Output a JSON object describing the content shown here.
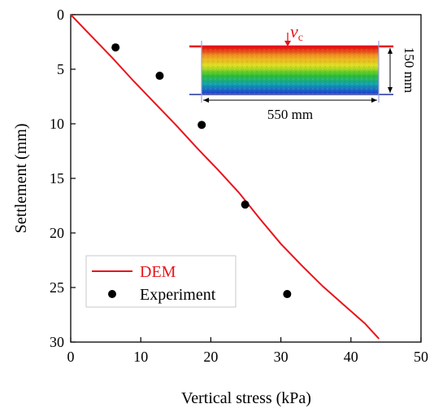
{
  "chart_data": {
    "type": "scatter",
    "xlabel": "Vertical stress (kPa)",
    "ylabel": "Settlement (mm)",
    "xlim": [
      0,
      50
    ],
    "ylim": [
      0,
      30
    ],
    "y_inverted": true,
    "x_ticks": [
      0,
      10,
      20,
      30,
      40,
      50
    ],
    "y_ticks": [
      0,
      5,
      10,
      15,
      20,
      25,
      30
    ],
    "grid": false,
    "legend": "bottom-left",
    "series": [
      {
        "name": "DEM",
        "kind": "line",
        "color": "#e8141b",
        "x": [
          0,
          3,
          6,
          9,
          12,
          15,
          18,
          21,
          24,
          27,
          30,
          33,
          36,
          39,
          42,
          44
        ],
        "y": [
          0,
          2.0,
          4.0,
          6.1,
          8.1,
          10.1,
          12.2,
          14.2,
          16.3,
          18.7,
          21.0,
          23.0,
          24.9,
          26.6,
          28.3,
          29.7
        ]
      },
      {
        "name": "Experiment",
        "kind": "scatter",
        "color": "#000000",
        "x": [
          6.4,
          12.7,
          18.7,
          24.9,
          30.9
        ],
        "y": [
          3.0,
          5.6,
          10.1,
          17.4,
          25.6
        ]
      }
    ],
    "inset": {
      "label_velocity": "v",
      "label_velocity_sub": "c",
      "width_label": "550 mm",
      "height_label": "150 mm",
      "colors": [
        "#e01010",
        "#f0a020",
        "#dde020",
        "#30c030",
        "#10a0b0",
        "#2040d0"
      ],
      "line_color": "#e8141b"
    }
  }
}
